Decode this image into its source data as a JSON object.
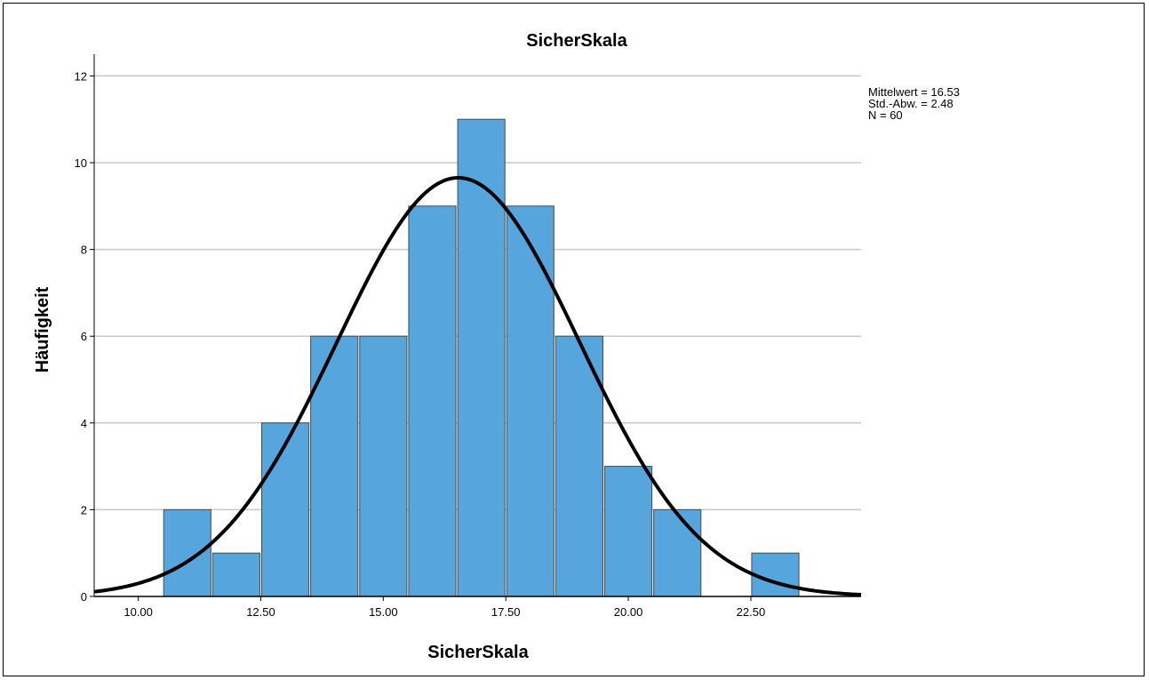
{
  "chart_data": {
    "type": "bar",
    "title": "SicherSkala",
    "xlabel": "SicherSkala",
    "ylabel": "Häufigkeit",
    "xlim": [
      9.1,
      24.75
    ],
    "ylim": [
      0,
      12.5
    ],
    "x_ticks": [
      "10.00",
      "12.50",
      "15.00",
      "17.50",
      "20.00",
      "22.50"
    ],
    "x_tick_values": [
      10,
      12.5,
      15,
      17.5,
      20,
      22.5
    ],
    "y_ticks": [
      0,
      2,
      4,
      6,
      8,
      10,
      12
    ],
    "bin_width": 1,
    "bins": [
      {
        "center": 11,
        "count": 2
      },
      {
        "center": 12,
        "count": 1
      },
      {
        "center": 13,
        "count": 4
      },
      {
        "center": 14,
        "count": 6
      },
      {
        "center": 15,
        "count": 6
      },
      {
        "center": 16,
        "count": 9
      },
      {
        "center": 17,
        "count": 11
      },
      {
        "center": 18,
        "count": 9
      },
      {
        "center": 19,
        "count": 6
      },
      {
        "center": 20,
        "count": 3
      },
      {
        "center": 21,
        "count": 2
      },
      {
        "center": 22,
        "count": 0
      },
      {
        "center": 23,
        "count": 1
      }
    ],
    "normal_curve": {
      "mean": 16.53,
      "sd": 2.48,
      "n": 60
    },
    "stats_lines": [
      "Mittelwert = 16.53",
      "Std.-Abw. = 2.48",
      "N = 60"
    ],
    "grid": true,
    "colors": {
      "bar": "#56a5dc",
      "bar_stroke": "#4a4a4a",
      "curve": "#000000",
      "grid": "#c8c8c8"
    }
  }
}
